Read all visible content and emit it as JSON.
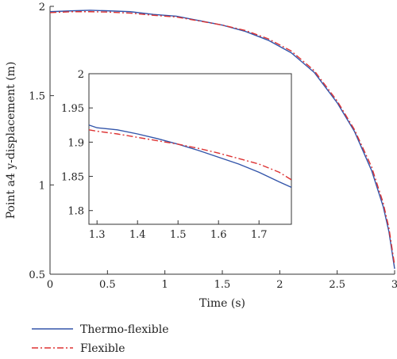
{
  "chart_data": [
    {
      "type": "line",
      "xlabel": "Time (s)",
      "ylabel": "Point a4 y-displacement (m)",
      "xlim": [
        0,
        3
      ],
      "ylim": [
        0.5,
        2
      ],
      "xticks": [
        "0",
        "0.5",
        "1",
        "1.5",
        "2",
        "2.5",
        "3"
      ],
      "yticks": [
        "0.5",
        "1",
        "1.5",
        "2"
      ],
      "grid": false,
      "legend_position": "bottom-left",
      "series": [
        {
          "name": "Thermo-flexible",
          "color": "#3355aa",
          "style": "solid",
          "x": [
            0,
            0.2,
            0.35,
            0.5,
            0.7,
            0.9,
            1.1,
            1.3,
            1.5,
            1.7,
            1.9,
            2.1,
            2.3,
            2.5,
            2.65,
            2.8,
            2.9,
            2.95,
            3.0
          ],
          "y": [
            1.97,
            1.975,
            1.978,
            1.975,
            1.97,
            1.955,
            1.945,
            1.92,
            1.895,
            1.86,
            1.81,
            1.74,
            1.63,
            1.46,
            1.3,
            1.08,
            0.88,
            0.74,
            0.53
          ]
        },
        {
          "name": "Flexible",
          "color": "#dd3333",
          "style": "dashdot",
          "x": [
            0,
            0.2,
            0.35,
            0.5,
            0.7,
            0.9,
            1.1,
            1.3,
            1.5,
            1.7,
            1.9,
            2.1,
            2.3,
            2.5,
            2.65,
            2.8,
            2.9,
            2.95,
            3.0
          ],
          "y": [
            1.965,
            1.97,
            1.97,
            1.968,
            1.962,
            1.95,
            1.94,
            1.918,
            1.895,
            1.865,
            1.818,
            1.75,
            1.64,
            1.47,
            1.31,
            1.1,
            0.9,
            0.76,
            0.55
          ]
        }
      ]
    },
    {
      "type": "line",
      "xlim": [
        1.28,
        1.78
      ],
      "ylim": [
        1.78,
        2.0
      ],
      "xticks": [
        "1.3",
        "1.4",
        "1.5",
        "1.6",
        "1.7"
      ],
      "yticks": [
        "1.8",
        "1.85",
        "1.9",
        "1.95",
        "2"
      ],
      "grid": false,
      "series": [
        {
          "name": "Thermo-flexible",
          "color": "#3355aa",
          "style": "solid",
          "x": [
            1.28,
            1.3,
            1.35,
            1.4,
            1.45,
            1.5,
            1.55,
            1.6,
            1.65,
            1.7,
            1.75,
            1.78
          ],
          "y": [
            1.925,
            1.921,
            1.918,
            1.912,
            1.905,
            1.897,
            1.888,
            1.878,
            1.868,
            1.856,
            1.842,
            1.834
          ]
        },
        {
          "name": "Flexible",
          "color": "#dd3333",
          "style": "dashdot",
          "x": [
            1.28,
            1.3,
            1.35,
            1.4,
            1.45,
            1.5,
            1.55,
            1.6,
            1.65,
            1.7,
            1.75,
            1.78
          ],
          "y": [
            1.918,
            1.916,
            1.912,
            1.907,
            1.902,
            1.897,
            1.891,
            1.884,
            1.876,
            1.868,
            1.856,
            1.845
          ]
        }
      ]
    }
  ]
}
